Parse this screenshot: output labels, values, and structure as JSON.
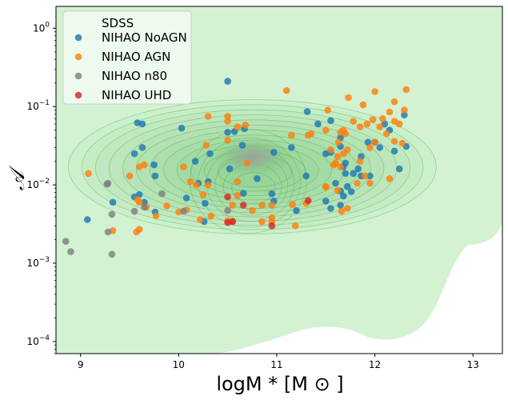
{
  "chart_data": {
    "type": "scatter",
    "title": "",
    "xlabel": "logM * [M ⊙ ]",
    "ylabel": "𝒜",
    "xlim": [
      8.75,
      13.3
    ],
    "ylim": [
      7e-05,
      1.9
    ],
    "yscale": "log",
    "grid": false,
    "legend_position": "top-left",
    "x_ticks": [
      9,
      10,
      11,
      12,
      13
    ],
    "y_ticks": [
      {
        "value": 0.0001,
        "base": "10",
        "exp": "−4"
      },
      {
        "value": 0.001,
        "base": "10",
        "exp": "−3"
      },
      {
        "value": 0.01,
        "base": "10",
        "exp": "−2"
      },
      {
        "value": 0.1,
        "base": "10",
        "exp": "−1"
      },
      {
        "value": 1,
        "base": "10",
        "exp": "0"
      }
    ],
    "sdss_density": {
      "label": "SDSS",
      "color": "#2ca02c",
      "peak": [
        10.75,
        0.017
      ]
    },
    "series": [
      {
        "name": "NIHAO NoAGN",
        "color": "#1f77b4",
        "points": [
          [
            10.5,
            0.21
          ],
          [
            9.58,
            0.062
          ],
          [
            9.63,
            0.06
          ],
          [
            10.03,
            0.053
          ],
          [
            10.57,
            0.048
          ],
          [
            10.67,
            0.052
          ],
          [
            10.5,
            0.047
          ],
          [
            9.55,
            0.025
          ],
          [
            9.63,
            0.03
          ],
          [
            10.65,
            0.032
          ],
          [
            10.32,
            0.025
          ],
          [
            10.17,
            0.02
          ],
          [
            10.52,
            0.016
          ],
          [
            9.75,
            0.018
          ],
          [
            9.76,
            0.013
          ],
          [
            10.97,
            0.026
          ],
          [
            11.15,
            0.03
          ],
          [
            11.31,
            0.086
          ],
          [
            11.42,
            0.06
          ],
          [
            11.5,
            0.025
          ],
          [
            11.55,
            0.026
          ],
          [
            11.65,
            0.04
          ],
          [
            11.65,
            0.031
          ],
          [
            11.7,
            0.019
          ],
          [
            11.68,
            0.017
          ],
          [
            11.7,
            0.014
          ],
          [
            11.78,
            0.014
          ],
          [
            11.83,
            0.016
          ],
          [
            11.86,
            0.023
          ],
          [
            11.86,
            0.013
          ],
          [
            11.95,
            0.013
          ],
          [
            11.93,
            0.035
          ],
          [
            12.0,
            0.035
          ],
          [
            12.05,
            0.03
          ],
          [
            12.1,
            0.06
          ],
          [
            12.15,
            0.05
          ],
          [
            12.2,
            0.027
          ],
          [
            12.25,
            0.016
          ],
          [
            12.32,
            0.031
          ],
          [
            12.3,
            0.078
          ],
          [
            11.55,
            0.066
          ],
          [
            10.3,
            0.011
          ],
          [
            10.2,
            0.0105
          ],
          [
            10.08,
            0.0068
          ],
          [
            10.27,
            0.0058
          ],
          [
            9.55,
            0.007
          ],
          [
            9.6,
            0.0075
          ],
          [
            9.65,
            0.006
          ],
          [
            9.76,
            0.0045
          ],
          [
            9.33,
            0.006
          ],
          [
            9.07,
            0.0036
          ],
          [
            10.26,
            0.0034
          ],
          [
            10.8,
            0.012
          ],
          [
            10.66,
            0.0078
          ],
          [
            10.95,
            0.0077
          ],
          [
            10.97,
            0.0062
          ],
          [
            11.2,
            0.0047
          ],
          [
            11.3,
            0.013
          ],
          [
            11.5,
            0.0062
          ],
          [
            11.55,
            0.005
          ],
          [
            11.65,
            0.0083
          ],
          [
            11.68,
            0.0072
          ],
          [
            11.72,
            0.0095
          ],
          [
            11.76,
            0.0082
          ],
          [
            11.6,
            0.0105
          ],
          [
            11.65,
            0.0055
          ]
        ]
      },
      {
        "name": "NIHAO AGN",
        "color": "#ff7f0e",
        "points": [
          [
            12.32,
            0.165
          ],
          [
            12.2,
            0.115
          ],
          [
            12.0,
            0.155
          ],
          [
            11.88,
            0.105
          ],
          [
            11.73,
            0.13
          ],
          [
            11.52,
            0.09
          ],
          [
            12.15,
            0.085
          ],
          [
            12.3,
            0.09
          ],
          [
            11.78,
            0.065
          ],
          [
            11.85,
            0.055
          ],
          [
            11.92,
            0.06
          ],
          [
            11.98,
            0.068
          ],
          [
            12.05,
            0.055
          ],
          [
            12.08,
            0.07
          ],
          [
            12.2,
            0.065
          ],
          [
            12.25,
            0.06
          ],
          [
            11.5,
            0.05
          ],
          [
            11.35,
            0.045
          ],
          [
            11.68,
            0.05
          ],
          [
            11.7,
            0.045
          ],
          [
            11.65,
            0.047
          ],
          [
            11.72,
            0.028
          ],
          [
            11.85,
            0.02
          ],
          [
            11.95,
            0.03
          ],
          [
            12.0,
            0.035
          ],
          [
            12.12,
            0.045
          ],
          [
            12.2,
            0.036
          ],
          [
            12.28,
            0.034
          ],
          [
            11.1,
            0.16
          ],
          [
            10.5,
            0.075
          ],
          [
            10.3,
            0.075
          ],
          [
            10.5,
            0.065
          ],
          [
            10.6,
            0.055
          ],
          [
            10.68,
            0.058
          ],
          [
            10.5,
            0.037
          ],
          [
            10.28,
            0.032
          ],
          [
            10.05,
            0.017
          ],
          [
            9.6,
            0.017
          ],
          [
            9.65,
            0.018
          ],
          [
            9.5,
            0.013
          ],
          [
            9.08,
            0.014
          ],
          [
            10.12,
            0.011
          ],
          [
            10.18,
            0.01
          ],
          [
            10.25,
            0.0075
          ],
          [
            10.3,
            0.01
          ],
          [
            10.6,
            0.011
          ],
          [
            10.7,
            0.019
          ],
          [
            11.15,
            0.043
          ],
          [
            11.32,
            0.043
          ],
          [
            11.63,
            0.035
          ],
          [
            11.55,
            0.028
          ],
          [
            11.68,
            0.025
          ],
          [
            11.62,
            0.023
          ],
          [
            11.6,
            0.019
          ],
          [
            11.58,
            0.018
          ],
          [
            11.65,
            0.017
          ],
          [
            11.9,
            0.013
          ],
          [
            12.15,
            0.012
          ],
          [
            11.5,
            0.0095
          ],
          [
            11.5,
            0.0093
          ],
          [
            11.62,
            0.0085
          ],
          [
            11.82,
            0.0105
          ],
          [
            11.95,
            0.0105
          ],
          [
            11.72,
            0.005
          ],
          [
            11.66,
            0.0046
          ],
          [
            11.3,
            0.0058
          ],
          [
            11.16,
            0.0056
          ],
          [
            10.95,
            0.0055
          ],
          [
            10.85,
            0.0055
          ],
          [
            10.95,
            0.0038
          ],
          [
            10.95,
            0.0034
          ],
          [
            10.85,
            0.0034
          ],
          [
            10.55,
            0.0055
          ],
          [
            10.75,
            0.0047
          ],
          [
            9.58,
            0.0065
          ],
          [
            9.6,
            0.006
          ],
          [
            9.67,
            0.0052
          ],
          [
            9.88,
            0.0054
          ],
          [
            9.77,
            0.004
          ],
          [
            10.0,
            0.0045
          ],
          [
            9.33,
            0.0026
          ],
          [
            9.6,
            0.0027
          ],
          [
            9.57,
            0.0025
          ],
          [
            10.33,
            0.004
          ],
          [
            10.22,
            0.0036
          ],
          [
            10.5,
            0.0035
          ],
          [
            10.55,
            0.0034
          ],
          [
            11.19,
            0.003
          ],
          [
            10.6,
            0.0073
          ],
          [
            10.08,
            0.0048
          ]
        ]
      },
      {
        "name": "NIHAO n80",
        "color": "#7f7f7f",
        "points": [
          [
            9.28,
            0.0105
          ],
          [
            9.27,
            0.0102
          ],
          [
            9.83,
            0.0077
          ],
          [
            9.55,
            0.0046
          ],
          [
            9.65,
            0.0052
          ],
          [
            9.32,
            0.0042
          ],
          [
            10.05,
            0.0046
          ],
          [
            10.5,
            0.0047
          ],
          [
            9.28,
            0.0025
          ],
          [
            9.32,
            0.0013
          ],
          [
            8.85,
            0.0019
          ],
          [
            8.9,
            0.0014
          ]
        ]
      },
      {
        "name": "NIHAO UHD",
        "color": "#d62728",
        "points": [
          [
            10.5,
            0.007
          ],
          [
            10.66,
            0.0055
          ],
          [
            11.32,
            0.0063
          ],
          [
            10.5,
            0.0033
          ],
          [
            10.55,
            0.0034
          ],
          [
            10.95,
            0.003
          ]
        ]
      }
    ]
  }
}
